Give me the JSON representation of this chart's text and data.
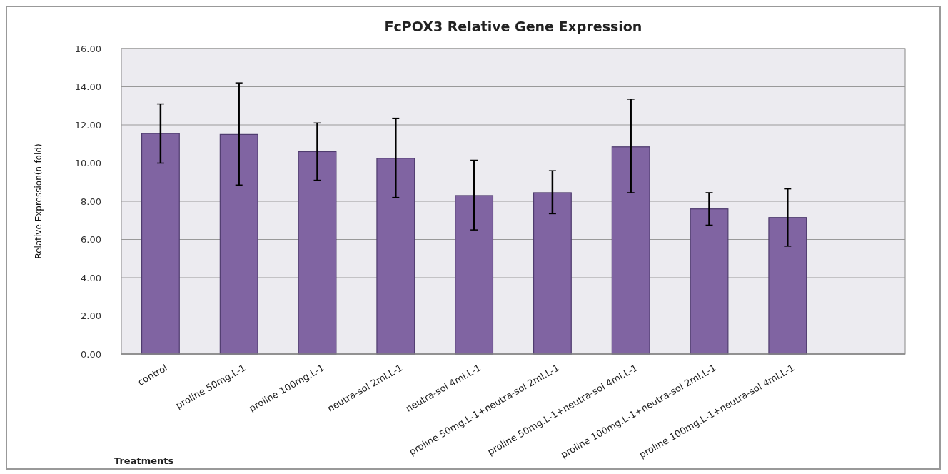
{
  "chart_data": {
    "type": "bar",
    "title": "FcPOX3 Relative Gene Expression",
    "xlabel": "Treatments",
    "ylabel": "Relative Expression(n-fold)",
    "categories": [
      "control",
      "proline 50mg.L-1",
      "proline 100mg.L-1",
      "neutra-sol 2ml.L-1",
      "neutra-sol 4ml.L-1",
      "proline 50mg.L-1+neutra-sol 2ml.L-1",
      "proline 50mg.L-1+neutra-sol 4ml.L-1",
      "proline 100mg.L-1+neutra-sol 2ml.L-1",
      "proline 100mg.L-1+neutra-sol 4ml.L-1",
      null
    ],
    "values": [
      11.55,
      11.5,
      10.6,
      10.25,
      8.3,
      8.45,
      10.85,
      7.6,
      7.15,
      null
    ],
    "errors": [
      [
        10.0,
        13.1
      ],
      [
        8.85,
        14.2
      ],
      [
        9.1,
        12.1
      ],
      [
        8.2,
        12.35
      ],
      [
        6.5,
        10.15
      ],
      [
        7.35,
        9.6
      ],
      [
        8.45,
        13.35
      ],
      [
        6.75,
        8.45
      ],
      [
        5.65,
        8.65
      ],
      null
    ],
    "color": "#8064a2",
    "ylim": [
      0,
      16
    ],
    "yticks": [
      {
        "value": 0,
        "label": "0.00"
      },
      {
        "value": 2,
        "label": "2.00"
      },
      {
        "value": 4,
        "label": "4.00"
      },
      {
        "value": 6,
        "label": "6.00"
      },
      {
        "value": 8,
        "label": "8.00"
      },
      {
        "value": 10,
        "label": "10.00"
      },
      {
        "value": 12,
        "label": "12.00"
      },
      {
        "value": 14,
        "label": "14.00"
      },
      {
        "value": 16,
        "label": "16.00"
      }
    ],
    "grid": "y"
  }
}
